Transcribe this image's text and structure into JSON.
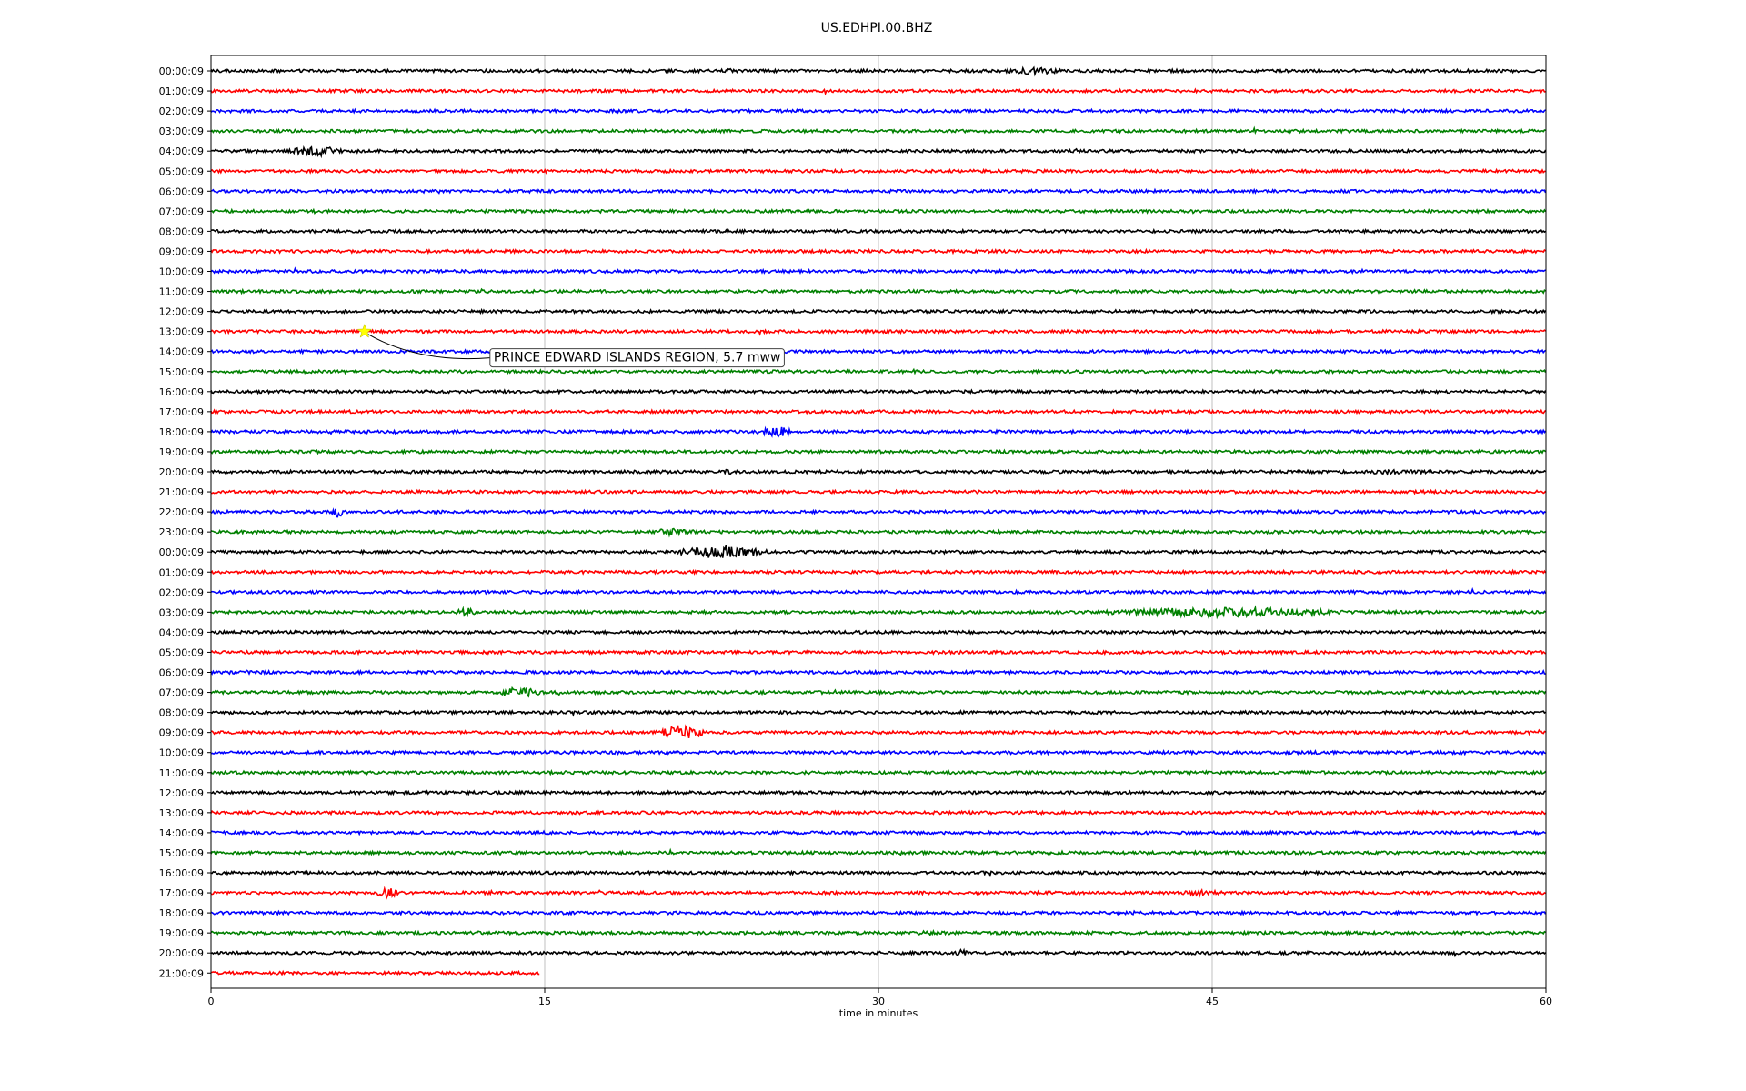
{
  "chart_data": {
    "type": "line",
    "title": "US.EDHPI.00.BHZ",
    "xlabel": "time in minutes",
    "ylabel": "",
    "xlim": [
      0,
      60
    ],
    "x_ticks": [
      "0",
      "15",
      "30",
      "45",
      "60"
    ],
    "x_tick_values": [
      0,
      15,
      30,
      45,
      60
    ],
    "vertical_gridlines_at": [
      15,
      30,
      45
    ],
    "trace_color_cycle": [
      "#000000",
      "#ff0000",
      "#0000ff",
      "#008000"
    ],
    "last_trace_end_minutes": 14.8,
    "row_labels": [
      "00:00:09",
      "01:00:09",
      "02:00:09",
      "03:00:09",
      "04:00:09",
      "05:00:09",
      "06:00:09",
      "07:00:09",
      "08:00:09",
      "09:00:09",
      "10:00:09",
      "11:00:09",
      "12:00:09",
      "13:00:09",
      "14:00:09",
      "15:00:09",
      "16:00:09",
      "17:00:09",
      "18:00:09",
      "19:00:09",
      "20:00:09",
      "21:00:09",
      "22:00:09",
      "23:00:09",
      "00:00:09",
      "01:00:09",
      "02:00:09",
      "03:00:09",
      "04:00:09",
      "05:00:09",
      "06:00:09",
      "07:00:09",
      "08:00:09",
      "09:00:09",
      "10:00:09",
      "11:00:09",
      "12:00:09",
      "13:00:09",
      "14:00:09",
      "15:00:09",
      "16:00:09",
      "17:00:09",
      "18:00:09",
      "19:00:09",
      "20:00:09",
      "21:00:09"
    ],
    "bursts": [
      {
        "row": 0,
        "start": 22.5,
        "end": 24,
        "amp": 0.25
      },
      {
        "row": 0,
        "start": 35.5,
        "end": 38.5,
        "amp": 0.4
      },
      {
        "row": 4,
        "start": 3.5,
        "end": 6,
        "amp": 0.6
      },
      {
        "row": 18,
        "start": 24.5,
        "end": 26.5,
        "amp": 0.6
      },
      {
        "row": 20,
        "start": 23,
        "end": 23.6,
        "amp": 0.4
      },
      {
        "row": 20,
        "start": 50,
        "end": 56,
        "amp": 0.25
      },
      {
        "row": 22,
        "start": 5.4,
        "end": 5.9,
        "amp": 0.9
      },
      {
        "row": 23,
        "start": 19.5,
        "end": 22,
        "amp": 0.4
      },
      {
        "row": 24,
        "start": 21,
        "end": 25,
        "amp": 0.8
      },
      {
        "row": 27,
        "start": 11,
        "end": 12,
        "amp": 0.5
      },
      {
        "row": 27,
        "start": 40,
        "end": 51,
        "amp": 0.6
      },
      {
        "row": 31,
        "start": 13,
        "end": 14.8,
        "amp": 0.7
      },
      {
        "row": 33,
        "start": 20,
        "end": 22.2,
        "amp": 0.8
      },
      {
        "row": 41,
        "start": 7.4,
        "end": 8.5,
        "amp": 0.6
      },
      {
        "row": 41,
        "start": 43,
        "end": 46,
        "amp": 0.3
      },
      {
        "row": 42,
        "start": 41,
        "end": 42.5,
        "amp": 0.25
      },
      {
        "row": 43,
        "start": 11.5,
        "end": 13,
        "amp": 0.25
      },
      {
        "row": 43,
        "start": 31,
        "end": 33.5,
        "amp": 0.25
      },
      {
        "row": 44,
        "start": 33.5,
        "end": 34,
        "amp": 0.5
      }
    ],
    "event": {
      "label": "PRINCE EDWARD ISLANDS REGION, 5.7 mww",
      "row": 13,
      "time_minutes": 6.9,
      "marker": "star",
      "marker_color": "#ffff00"
    }
  }
}
